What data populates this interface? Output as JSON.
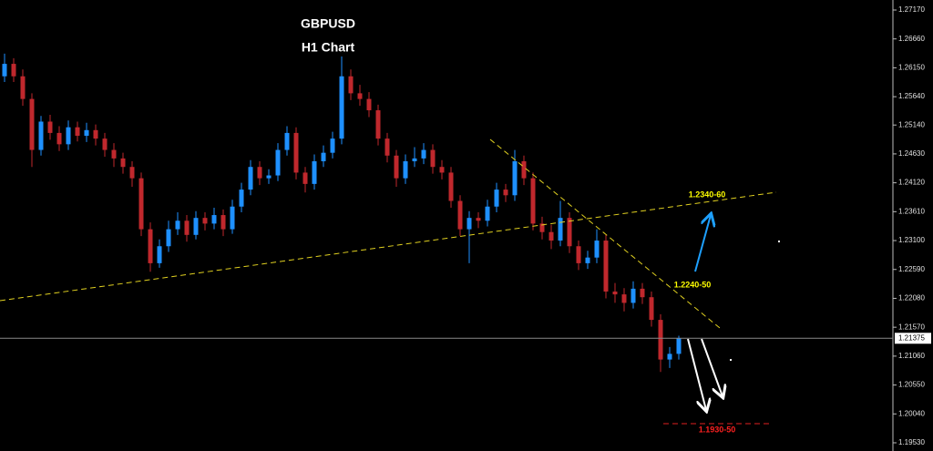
{
  "chart_data": {
    "type": "candlestick",
    "title": "GBPUSD",
    "subtitle": "H1 Chart",
    "up_color": "#1e90ff",
    "down_color": "#c0282d",
    "ylim": [
      1.19385,
      1.27347
    ],
    "yticks": [
      {
        "value": 1.2717,
        "label": "1.27170"
      },
      {
        "value": 1.2666,
        "label": "1.26660"
      },
      {
        "value": 1.2615,
        "label": "1.26150"
      },
      {
        "value": 1.2564,
        "label": "1.25640"
      },
      {
        "value": 1.2514,
        "label": "1.25140"
      },
      {
        "value": 1.2463,
        "label": "1.24630"
      },
      {
        "value": 1.2412,
        "label": "1.24120"
      },
      {
        "value": 1.2361,
        "label": "1.23610"
      },
      {
        "value": 1.231,
        "label": "1.23100"
      },
      {
        "value": 1.2259,
        "label": "1.22590"
      },
      {
        "value": 1.2208,
        "label": "1.22080"
      },
      {
        "value": 1.2157,
        "label": "1.21570"
      },
      {
        "value": 1.2106,
        "label": "1.21060"
      },
      {
        "value": 1.2055,
        "label": "1.20550"
      },
      {
        "value": 1.2004,
        "label": "1.20040"
      },
      {
        "value": 1.1953,
        "label": "1.19530"
      }
    ],
    "current_price": 1.21375,
    "annotations": [
      {
        "text": "1.2340-60",
        "color": "#ffff00"
      },
      {
        "text": "1.2240-50",
        "color": "#ffff00"
      },
      {
        "text": "1.1930-50",
        "color": "#ff2020"
      }
    ],
    "candles": [
      [
        1.26,
        1.264,
        1.259,
        1.2622
      ],
      [
        1.2622,
        1.2632,
        1.259,
        1.26
      ],
      [
        1.26,
        1.2612,
        1.2548,
        1.256
      ],
      [
        1.256,
        1.257,
        1.244,
        1.247
      ],
      [
        1.247,
        1.253,
        1.246,
        1.252
      ],
      [
        1.252,
        1.2532,
        1.2488,
        1.25
      ],
      [
        1.25,
        1.2512,
        1.2468,
        1.248
      ],
      [
        1.248,
        1.2522,
        1.247,
        1.251
      ],
      [
        1.251,
        1.252,
        1.2485,
        1.2495
      ],
      [
        1.2495,
        1.2518,
        1.2484,
        1.2505
      ],
      [
        1.2505,
        1.2515,
        1.2478,
        1.249
      ],
      [
        1.249,
        1.25,
        1.2458,
        1.247
      ],
      [
        1.247,
        1.2482,
        1.244,
        1.2455
      ],
      [
        1.2455,
        1.2465,
        1.2428,
        1.244
      ],
      [
        1.244,
        1.245,
        1.2405,
        1.242
      ],
      [
        1.242,
        1.243,
        1.2318,
        1.233
      ],
      [
        1.233,
        1.2342,
        1.2255,
        1.227
      ],
      [
        1.227,
        1.2312,
        1.2262,
        1.23
      ],
      [
        1.23,
        1.2345,
        1.229,
        1.233
      ],
      [
        1.233,
        1.236,
        1.232,
        1.2345
      ],
      [
        1.2345,
        1.2355,
        1.2308,
        1.232
      ],
      [
        1.232,
        1.2362,
        1.2312,
        1.235
      ],
      [
        1.235,
        1.236,
        1.2328,
        1.234
      ],
      [
        1.234,
        1.2368,
        1.233,
        1.2355
      ],
      [
        1.2355,
        1.2365,
        1.2318,
        1.233
      ],
      [
        1.233,
        1.2382,
        1.2322,
        1.237
      ],
      [
        1.237,
        1.2412,
        1.236,
        1.24
      ],
      [
        1.24,
        1.2452,
        1.239,
        1.244
      ],
      [
        1.244,
        1.245,
        1.2408,
        1.242
      ],
      [
        1.242,
        1.2436,
        1.241,
        1.2425
      ],
      [
        1.2425,
        1.2482,
        1.2415,
        1.247
      ],
      [
        1.247,
        1.2512,
        1.246,
        1.25
      ],
      [
        1.25,
        1.251,
        1.2418,
        1.243
      ],
      [
        1.243,
        1.244,
        1.2395,
        1.241
      ],
      [
        1.241,
        1.2462,
        1.24,
        1.245
      ],
      [
        1.245,
        1.2478,
        1.244,
        1.2465
      ],
      [
        1.2465,
        1.2502,
        1.2455,
        1.249
      ],
      [
        1.249,
        1.2635,
        1.248,
        1.26
      ],
      [
        1.26,
        1.2612,
        1.2558,
        1.257
      ],
      [
        1.257,
        1.2585,
        1.2548,
        1.256
      ],
      [
        1.256,
        1.2572,
        1.2528,
        1.254
      ],
      [
        1.254,
        1.255,
        1.2478,
        1.249
      ],
      [
        1.249,
        1.25,
        1.2448,
        1.246
      ],
      [
        1.246,
        1.247,
        1.2405,
        1.242
      ],
      [
        1.242,
        1.2462,
        1.241,
        1.245
      ],
      [
        1.245,
        1.2475,
        1.244,
        1.2455
      ],
      [
        1.2455,
        1.2482,
        1.2445,
        1.247
      ],
      [
        1.247,
        1.248,
        1.2428,
        1.244
      ],
      [
        1.244,
        1.2452,
        1.2418,
        1.243
      ],
      [
        1.243,
        1.244,
        1.2368,
        1.238
      ],
      [
        1.238,
        1.239,
        1.2318,
        1.233
      ],
      [
        1.233,
        1.2362,
        1.227,
        1.235
      ],
      [
        1.235,
        1.236,
        1.2332,
        1.2345
      ],
      [
        1.2345,
        1.2382,
        1.2335,
        1.237
      ],
      [
        1.237,
        1.2412,
        1.236,
        1.24
      ],
      [
        1.24,
        1.241,
        1.2378,
        1.239
      ],
      [
        1.239,
        1.247,
        1.238,
        1.245
      ],
      [
        1.245,
        1.246,
        1.2408,
        1.242
      ],
      [
        1.242,
        1.243,
        1.2328,
        1.234
      ],
      [
        1.234,
        1.2352,
        1.2312,
        1.2325
      ],
      [
        1.2325,
        1.2338,
        1.2295,
        1.231
      ],
      [
        1.231,
        1.238,
        1.23,
        1.235
      ],
      [
        1.235,
        1.236,
        1.2288,
        1.23
      ],
      [
        1.23,
        1.231,
        1.2258,
        1.227
      ],
      [
        1.227,
        1.2292,
        1.226,
        1.228
      ],
      [
        1.228,
        1.233,
        1.227,
        1.231
      ],
      [
        1.231,
        1.232,
        1.2208,
        1.222
      ],
      [
        1.222,
        1.2235,
        1.22,
        1.2215
      ],
      [
        1.2215,
        1.2226,
        1.2185,
        1.22
      ],
      [
        1.22,
        1.2238,
        1.219,
        1.2225
      ],
      [
        1.2225,
        1.2235,
        1.2198,
        1.221
      ],
      [
        1.221,
        1.222,
        1.2158,
        1.217
      ],
      [
        1.217,
        1.218,
        1.2078,
        1.21
      ],
      [
        1.21,
        1.2122,
        1.2085,
        1.211
      ],
      [
        1.211,
        1.2142,
        1.21,
        1.21375
      ]
    ]
  }
}
